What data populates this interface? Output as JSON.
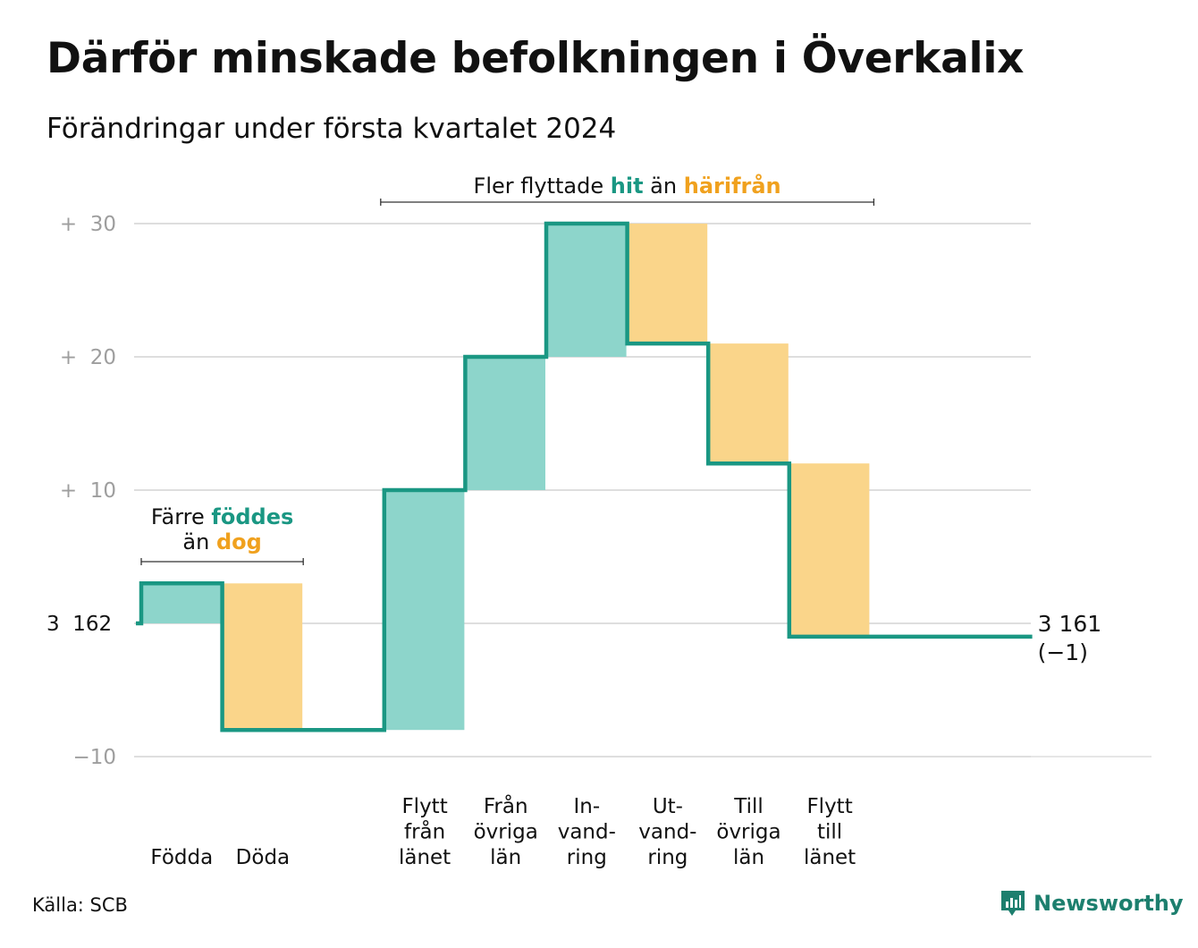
{
  "title": "Därför minskade befolkningen i Överkalix",
  "subtitle": "Förändringar under första kvartalet 2024",
  "source": "Källa: SCB",
  "logo_text": "Newsworthy",
  "colors": {
    "line": "#1a9783",
    "increase_fill": "#8dd5cb",
    "decrease_fill": "#fad58a",
    "increase_text": "#1a9783",
    "decrease_text": "#f0a11e",
    "grid": "#dedede",
    "tick_text": "#9e9e9e"
  },
  "annotations": {
    "births": {
      "prefix": "Färre",
      "highlight1": "föddes",
      "middle": "än",
      "highlight2": "dog"
    },
    "migration": {
      "prefix": "Fler flyttade",
      "highlight1": "hit",
      "middle": "än",
      "highlight2": "härifrån"
    }
  },
  "chart_data": {
    "type": "waterfall",
    "start_value": 3162,
    "start_label": "3  162",
    "end_label": "3 161",
    "end_change_label": "(−1)",
    "yticks": [
      {
        "value": 30,
        "label": "+  30"
      },
      {
        "value": 20,
        "label": "+  20"
      },
      {
        "value": 10,
        "label": "+  10"
      },
      {
        "value": 0,
        "label": "3  162"
      },
      {
        "value": -10,
        "label": "−10"
      }
    ],
    "ylim": [
      -10,
      30
    ],
    "steps": [
      {
        "label": [
          "Födda"
        ],
        "change": 3,
        "from": 0,
        "to": 3
      },
      {
        "label": [
          "Döda"
        ],
        "change": -11,
        "from": 3,
        "to": -8
      },
      {
        "label": [],
        "change": 0,
        "from": -8,
        "to": -8
      },
      {
        "label": [
          "Flytt",
          "från",
          "länet"
        ],
        "change": 18,
        "from": -8,
        "to": 10
      },
      {
        "label": [
          "Från",
          "övriga",
          "län"
        ],
        "change": 10,
        "from": 10,
        "to": 20
      },
      {
        "label": [
          "In-",
          "vand-",
          "ring"
        ],
        "change": 10,
        "from": 20,
        "to": 30
      },
      {
        "label": [
          "Ut-",
          "vand-",
          "ring"
        ],
        "change": -9,
        "from": 30,
        "to": 21
      },
      {
        "label": [
          "Till",
          "övriga",
          "län"
        ],
        "change": -9,
        "from": 21,
        "to": 12
      },
      {
        "label": [
          "Flytt",
          "till",
          "länet"
        ],
        "change": -13,
        "from": 12,
        "to": -1
      },
      {
        "label": [],
        "change": 0,
        "from": -1,
        "to": -1
      },
      {
        "label": [],
        "change": 0,
        "from": -1,
        "to": -1
      }
    ],
    "end_value": 3161,
    "net_change": -1
  }
}
